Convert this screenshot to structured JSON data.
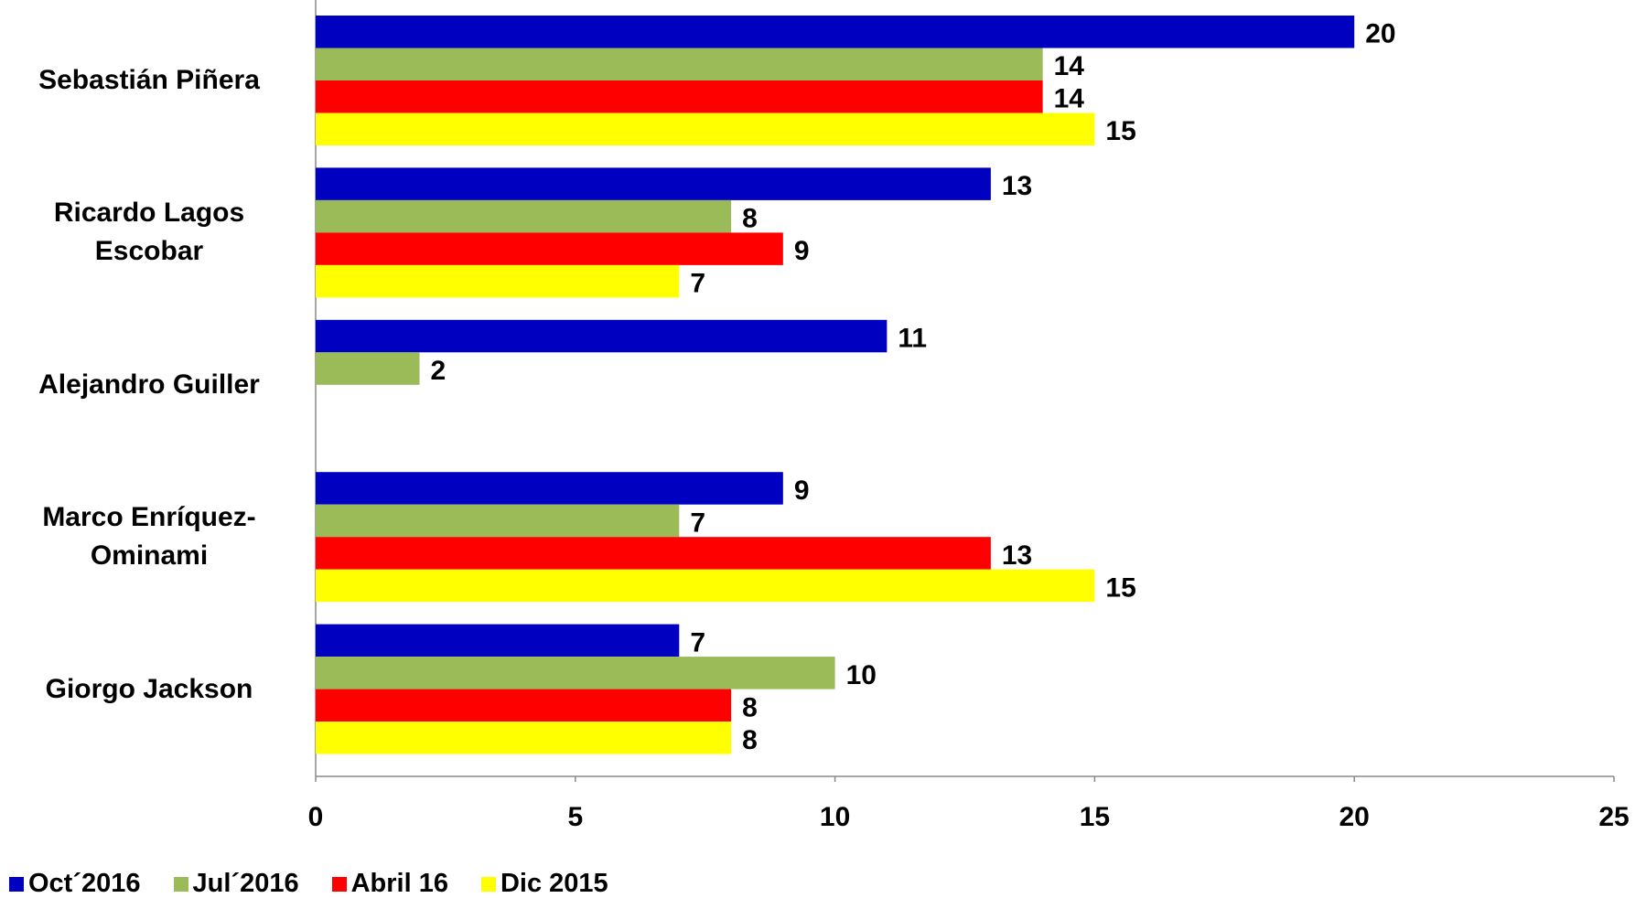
{
  "chart_data": {
    "type": "hbar",
    "categories": [
      "Sebastián Piñera",
      "Ricardo Lagos Escobar",
      "Alejandro Guiller",
      "Marco Enríquez-Ominami",
      "Giorgo Jackson"
    ],
    "series": [
      {
        "name": "Oct´2016",
        "color": "#0000c0",
        "values": [
          20,
          13,
          11,
          9,
          7
        ]
      },
      {
        "name": "Jul´2016",
        "color": "#9bbb59",
        "values": [
          14,
          8,
          2,
          7,
          10
        ]
      },
      {
        "name": "Abril 16",
        "color": "#ff0000",
        "values": [
          14,
          9,
          null,
          13,
          8
        ]
      },
      {
        "name": "Dic 2015",
        "color": "#ffff00",
        "values": [
          15,
          7,
          null,
          15,
          8
        ]
      }
    ],
    "xlim": [
      0,
      25
    ],
    "xticks": [
      0,
      5,
      10,
      15,
      20,
      25
    ],
    "grid": false
  }
}
